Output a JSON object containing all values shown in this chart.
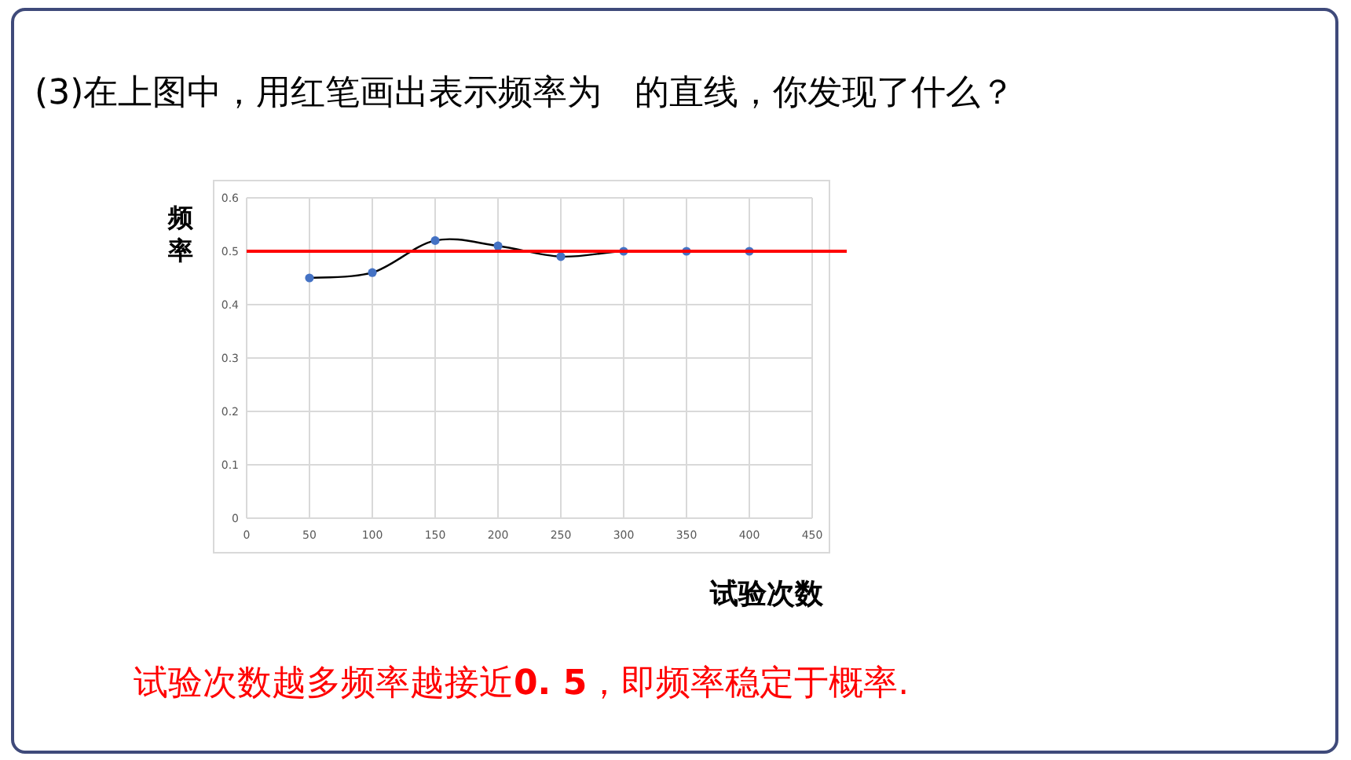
{
  "chart_data": {
    "type": "line",
    "title": "(3)在上图中，用红笔画出表示频率为   的直线，你发现了什么？",
    "xlabel": "试验次数",
    "ylabel": "频率",
    "x": [
      50,
      100,
      150,
      200,
      250,
      300,
      350,
      400
    ],
    "series": [
      {
        "color": "#4472c4",
        "values": [
          0.45,
          0.46,
          0.52,
          0.51,
          0.49,
          0.5,
          0.5,
          0.5
        ]
      }
    ],
    "xlim": [
      0,
      450
    ],
    "xticks": [
      0,
      50,
      100,
      150,
      200,
      250,
      300,
      350,
      400,
      450
    ],
    "ylim": [
      0,
      0.6
    ],
    "yticks": [
      0,
      0.1,
      0.2,
      0.3,
      0.4,
      0.5,
      0.6
    ],
    "grid": true,
    "marker": "circle",
    "ref_lines": [
      {
        "axis": "y",
        "value": 0.5,
        "color": "#ff0000"
      }
    ],
    "annotations": [
      "试验次数越多频率越接近**0. 5**，即频率稳定于概率."
    ]
  }
}
